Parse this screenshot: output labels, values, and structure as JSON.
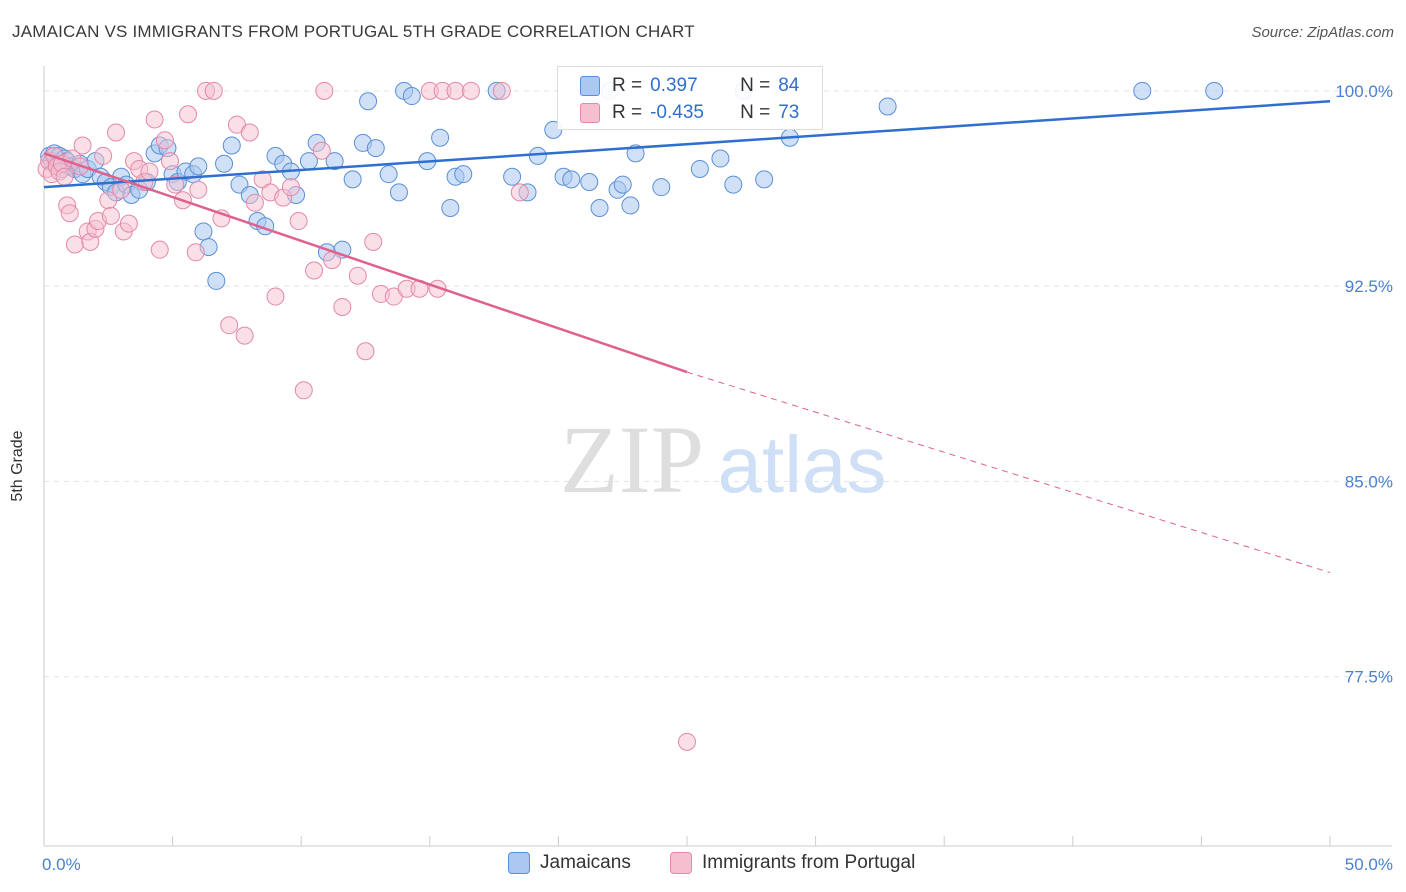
{
  "header": {
    "title": "JAMAICAN VS IMMIGRANTS FROM PORTUGAL 5TH GRADE CORRELATION CHART",
    "source": "Source: ZipAtlas.com"
  },
  "watermark": {
    "part1": "ZIP",
    "part2": "atlas"
  },
  "colors": {
    "blue_fill": "#aac8f0",
    "blue_stroke": "#5b8fd6",
    "blue_line": "#2f6fcf",
    "pink_fill": "#f6bfd0",
    "pink_stroke": "#e389a8",
    "pink_line": "#e0608e",
    "tick_text": "#4a7fd1",
    "grid": "#e3e3e3"
  },
  "legend": {
    "rows": [
      {
        "r_label": "R =",
        "r_value": "0.397",
        "n_label": "N =",
        "n_value": "84"
      },
      {
        "r_label": "R =",
        "r_value": "-0.435",
        "n_label": "N =",
        "n_value": "73"
      }
    ]
  },
  "bottom_legend": [
    "Jamaicans",
    "Immigrants from Portugal"
  ],
  "chart_data": {
    "type": "scatter",
    "title": "JAMAICAN VS IMMIGRANTS FROM PORTUGAL 5TH GRADE CORRELATION CHART",
    "xlabel": "",
    "ylabel": "5th Grade",
    "xlim": [
      0,
      50
    ],
    "ylim": [
      71.0,
      100.8
    ],
    "x_tick_labels": [
      "0.0%",
      "50.0%"
    ],
    "y_ticks": [
      100.0,
      92.5,
      85.0,
      77.5
    ],
    "y_tick_labels": [
      "100.0%",
      "92.5%",
      "85.0%",
      "77.5%"
    ],
    "grid": "horizontal dashed",
    "legend_position": "top-center",
    "series": [
      {
        "name": "Jamaicans",
        "R": 0.397,
        "N": 84,
        "trend": {
          "x": [
            0,
            50
          ],
          "y": [
            96.3,
            99.6
          ],
          "style": "solid"
        },
        "points": [
          [
            0.2,
            97.5
          ],
          [
            0.3,
            97.3
          ],
          [
            0.4,
            97.6
          ],
          [
            0.5,
            97.2
          ],
          [
            0.6,
            97.5
          ],
          [
            0.7,
            97.0
          ],
          [
            0.8,
            97.4
          ],
          [
            0.9,
            97.3
          ],
          [
            1.0,
            97.1
          ],
          [
            1.2,
            97.0
          ],
          [
            1.4,
            97.2
          ],
          [
            1.5,
            96.8
          ],
          [
            1.7,
            97.0
          ],
          [
            2.0,
            97.3
          ],
          [
            2.2,
            96.7
          ],
          [
            2.4,
            96.5
          ],
          [
            2.6,
            96.3
          ],
          [
            2.8,
            96.1
          ],
          [
            3.0,
            96.7
          ],
          [
            3.2,
            96.4
          ],
          [
            3.4,
            96.0
          ],
          [
            3.7,
            96.2
          ],
          [
            4.0,
            96.5
          ],
          [
            4.3,
            97.6
          ],
          [
            4.5,
            97.9
          ],
          [
            4.8,
            97.8
          ],
          [
            5.0,
            96.8
          ],
          [
            5.2,
            96.5
          ],
          [
            5.5,
            96.9
          ],
          [
            5.8,
            96.8
          ],
          [
            6.0,
            97.1
          ],
          [
            6.2,
            94.6
          ],
          [
            6.4,
            94.0
          ],
          [
            6.7,
            92.7
          ],
          [
            7.0,
            97.2
          ],
          [
            7.3,
            97.9
          ],
          [
            7.6,
            96.4
          ],
          [
            8.0,
            96.0
          ],
          [
            8.3,
            95.0
          ],
          [
            8.6,
            94.8
          ],
          [
            9.0,
            97.5
          ],
          [
            9.3,
            97.2
          ],
          [
            9.6,
            96.9
          ],
          [
            9.8,
            96.0
          ],
          [
            10.3,
            97.3
          ],
          [
            10.6,
            98.0
          ],
          [
            11.0,
            93.8
          ],
          [
            11.3,
            97.3
          ],
          [
            11.6,
            93.9
          ],
          [
            12.0,
            96.6
          ],
          [
            12.4,
            98.0
          ],
          [
            12.6,
            99.6
          ],
          [
            12.9,
            97.8
          ],
          [
            13.4,
            96.8
          ],
          [
            13.8,
            96.1
          ],
          [
            14.0,
            100.0
          ],
          [
            14.3,
            99.8
          ],
          [
            14.9,
            97.3
          ],
          [
            15.4,
            98.2
          ],
          [
            15.8,
            95.5
          ],
          [
            16.0,
            96.7
          ],
          [
            16.3,
            96.8
          ],
          [
            17.6,
            100.0
          ],
          [
            18.2,
            96.7
          ],
          [
            18.8,
            96.1
          ],
          [
            19.2,
            97.5
          ],
          [
            19.8,
            98.5
          ],
          [
            20.2,
            96.7
          ],
          [
            20.5,
            96.6
          ],
          [
            21.2,
            96.5
          ],
          [
            21.6,
            95.5
          ],
          [
            22.0,
            100.0
          ],
          [
            22.3,
            96.2
          ],
          [
            22.5,
            96.4
          ],
          [
            22.8,
            95.6
          ],
          [
            23.0,
            97.6
          ],
          [
            24.0,
            96.3
          ],
          [
            25.5,
            97.0
          ],
          [
            26.3,
            97.4
          ],
          [
            26.8,
            96.4
          ],
          [
            27.2,
            100.0
          ],
          [
            28.0,
            96.6
          ],
          [
            29.0,
            98.2
          ],
          [
            32.8,
            99.4
          ],
          [
            42.7,
            100.0
          ],
          [
            45.5,
            100.0
          ]
        ]
      },
      {
        "name": "Immigrants from Portugal",
        "R": -0.435,
        "N": 73,
        "trend": {
          "x": [
            0,
            25,
            50
          ],
          "y": [
            97.6,
            89.2,
            81.5
          ],
          "style": "solid to x=25, dashed after"
        },
        "points": [
          [
            0.1,
            97.0
          ],
          [
            0.2,
            97.3
          ],
          [
            0.3,
            96.8
          ],
          [
            0.4,
            97.5
          ],
          [
            0.5,
            97.1
          ],
          [
            0.6,
            96.9
          ],
          [
            0.7,
            97.2
          ],
          [
            0.8,
            96.7
          ],
          [
            0.9,
            95.6
          ],
          [
            1.0,
            95.3
          ],
          [
            1.1,
            97.4
          ],
          [
            1.2,
            94.1
          ],
          [
            1.4,
            97.1
          ],
          [
            1.5,
            97.9
          ],
          [
            1.7,
            94.6
          ],
          [
            1.8,
            94.2
          ],
          [
            2.0,
            94.7
          ],
          [
            2.1,
            95.0
          ],
          [
            2.3,
            97.5
          ],
          [
            2.5,
            95.8
          ],
          [
            2.6,
            95.2
          ],
          [
            2.8,
            98.4
          ],
          [
            3.0,
            96.2
          ],
          [
            3.1,
            94.6
          ],
          [
            3.3,
            94.9
          ],
          [
            3.5,
            97.3
          ],
          [
            3.7,
            97.0
          ],
          [
            3.9,
            96.5
          ],
          [
            4.1,
            96.9
          ],
          [
            4.3,
            98.9
          ],
          [
            4.5,
            93.9
          ],
          [
            4.7,
            98.1
          ],
          [
            4.9,
            97.3
          ],
          [
            5.1,
            96.4
          ],
          [
            5.4,
            95.8
          ],
          [
            5.6,
            99.1
          ],
          [
            5.9,
            93.8
          ],
          [
            6.0,
            96.2
          ],
          [
            6.3,
            100.0
          ],
          [
            6.6,
            100.0
          ],
          [
            6.9,
            95.1
          ],
          [
            7.2,
            91.0
          ],
          [
            7.5,
            98.7
          ],
          [
            7.8,
            90.6
          ],
          [
            8.0,
            98.4
          ],
          [
            8.2,
            95.7
          ],
          [
            8.5,
            96.6
          ],
          [
            8.8,
            96.1
          ],
          [
            9.0,
            92.1
          ],
          [
            9.3,
            95.9
          ],
          [
            9.6,
            96.3
          ],
          [
            9.9,
            95.0
          ],
          [
            10.1,
            88.5
          ],
          [
            10.5,
            93.1
          ],
          [
            10.8,
            97.7
          ],
          [
            11.2,
            93.5
          ],
          [
            11.6,
            91.7
          ],
          [
            12.2,
            92.9
          ],
          [
            12.5,
            90.0
          ],
          [
            12.8,
            94.2
          ],
          [
            13.1,
            92.2
          ],
          [
            13.6,
            92.1
          ],
          [
            14.1,
            92.4
          ],
          [
            14.6,
            92.4
          ],
          [
            15.0,
            100.0
          ],
          [
            15.5,
            100.0
          ],
          [
            16.0,
            100.0
          ],
          [
            16.6,
            100.0
          ],
          [
            17.8,
            100.0
          ],
          [
            18.5,
            96.1
          ],
          [
            10.9,
            100.0
          ],
          [
            25.0,
            75.0
          ],
          [
            15.3,
            92.4
          ]
        ]
      }
    ]
  }
}
